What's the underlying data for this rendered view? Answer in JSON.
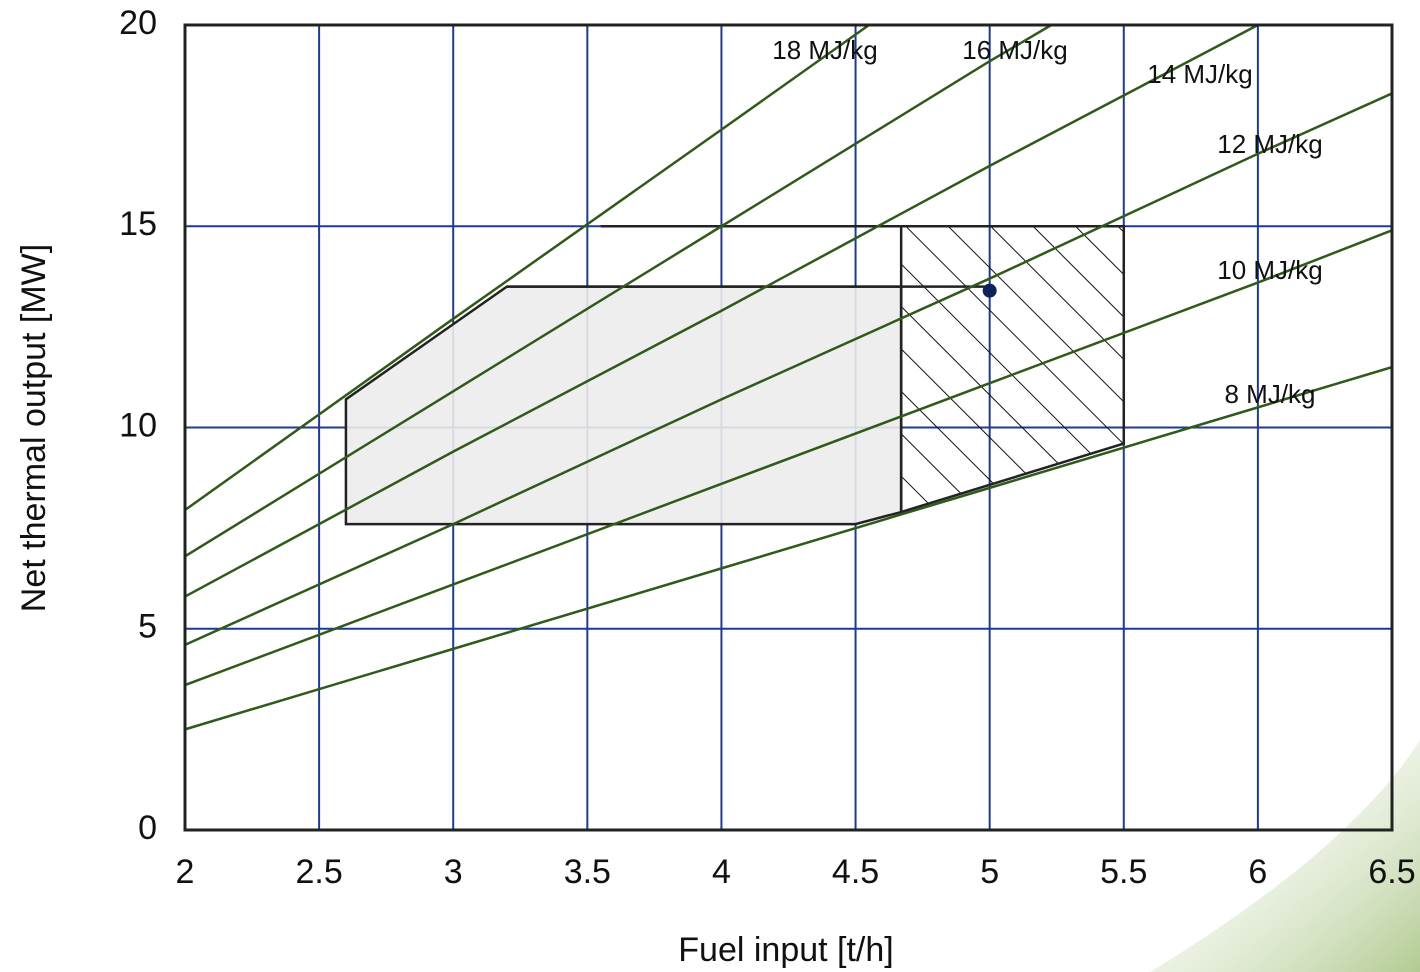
{
  "chart_data": {
    "type": "line",
    "x_label": "Fuel input [t/h]",
    "y_label": "Net thermal output [MW]",
    "xlim": [
      2,
      6.5
    ],
    "ylim": [
      0,
      20
    ],
    "xticks": [
      2,
      2.5,
      3,
      3.5,
      4,
      4.5,
      5,
      5.5,
      6,
      6.5
    ],
    "yticks": [
      0,
      5,
      10,
      15,
      20
    ],
    "grid": true,
    "grid_color": "#1f3a93",
    "series": [
      {
        "name": "18 MJ/kg",
        "color": "#2f5a1a",
        "x": [
          2,
          3,
          4,
          4.55
        ],
        "values": [
          7.95,
          12.7,
          17.4,
          20
        ]
      },
      {
        "name": "16 MJ/kg",
        "color": "#2f5a1a",
        "x": [
          2,
          3,
          4,
          5,
          5.23
        ],
        "values": [
          6.8,
          10.9,
          15,
          19.1,
          20
        ]
      },
      {
        "name": "14 MJ/kg",
        "color": "#2f5a1a",
        "x": [
          2,
          3,
          4,
          5,
          6
        ],
        "values": [
          5.8,
          9.4,
          12.9,
          16.5,
          20
        ]
      },
      {
        "name": "12 MJ/kg",
        "color": "#2f5a1a",
        "x": [
          2,
          3,
          4,
          5,
          6,
          6.5
        ],
        "values": [
          4.6,
          7.6,
          10.7,
          13.7,
          16.8,
          18.3
        ]
      },
      {
        "name": "10 MJ/kg",
        "color": "#2f5a1a",
        "x": [
          2,
          3,
          4,
          5,
          6,
          6.5
        ],
        "values": [
          3.6,
          6.1,
          8.6,
          11.1,
          13.6,
          14.9
        ]
      },
      {
        "name": "8 MJ/kg",
        "color": "#2f5a1a",
        "x": [
          2,
          3,
          4,
          5,
          6,
          6.5
        ],
        "values": [
          2.5,
          4.5,
          6.5,
          8.5,
          10.5,
          11.5
        ]
      }
    ],
    "shaded_area": {
      "x": [
        2.6,
        2.6,
        3.2,
        4.67,
        4.67,
        4.5,
        2.6
      ],
      "values": [
        7.6,
        10.7,
        13.5,
        13.5,
        7.9,
        7.6,
        7.6
      ]
    },
    "hatched_area": {
      "x": [
        4.67,
        4.67,
        5.5,
        5.5
      ],
      "values": [
        7.9,
        15,
        15,
        9.6
      ]
    },
    "outline": {
      "x": [
        3.55,
        5.5
      ],
      "values": [
        15,
        15
      ]
    },
    "operating_line": {
      "x": [
        3.2,
        5.0
      ],
      "values": [
        13.5,
        13.5
      ]
    },
    "operating_point": {
      "x": 5.0,
      "value": 13.4
    }
  }
}
